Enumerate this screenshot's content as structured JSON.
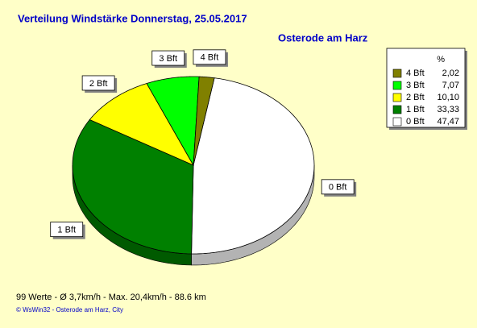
{
  "chart_data": {
    "type": "pie3d",
    "title": "Verteilung Windstärke  Donnerstag, 25.05.2017",
    "subtitle": "Osterode am Harz",
    "categories": [
      "0 Bft",
      "1 Bft",
      "2 Bft",
      "3 Bft",
      "4 Bft"
    ],
    "values": [
      47.47,
      33.33,
      10.1,
      7.07,
      2.02
    ],
    "value_labels": [
      "47,47",
      "33,33",
      "10,10",
      "7,07",
      "2,02"
    ],
    "colors": [
      "#ffffff",
      "#008000",
      "#ffff00",
      "#00ff00",
      "#808000"
    ],
    "legend_title": "%",
    "legend": "top-right",
    "footer": "99 Werte   -   Ø 3,7km/h  -  Max. 20,4km/h   -   88.6 km",
    "credit": "© WsWin32  -  Osterode am Harz, City"
  }
}
